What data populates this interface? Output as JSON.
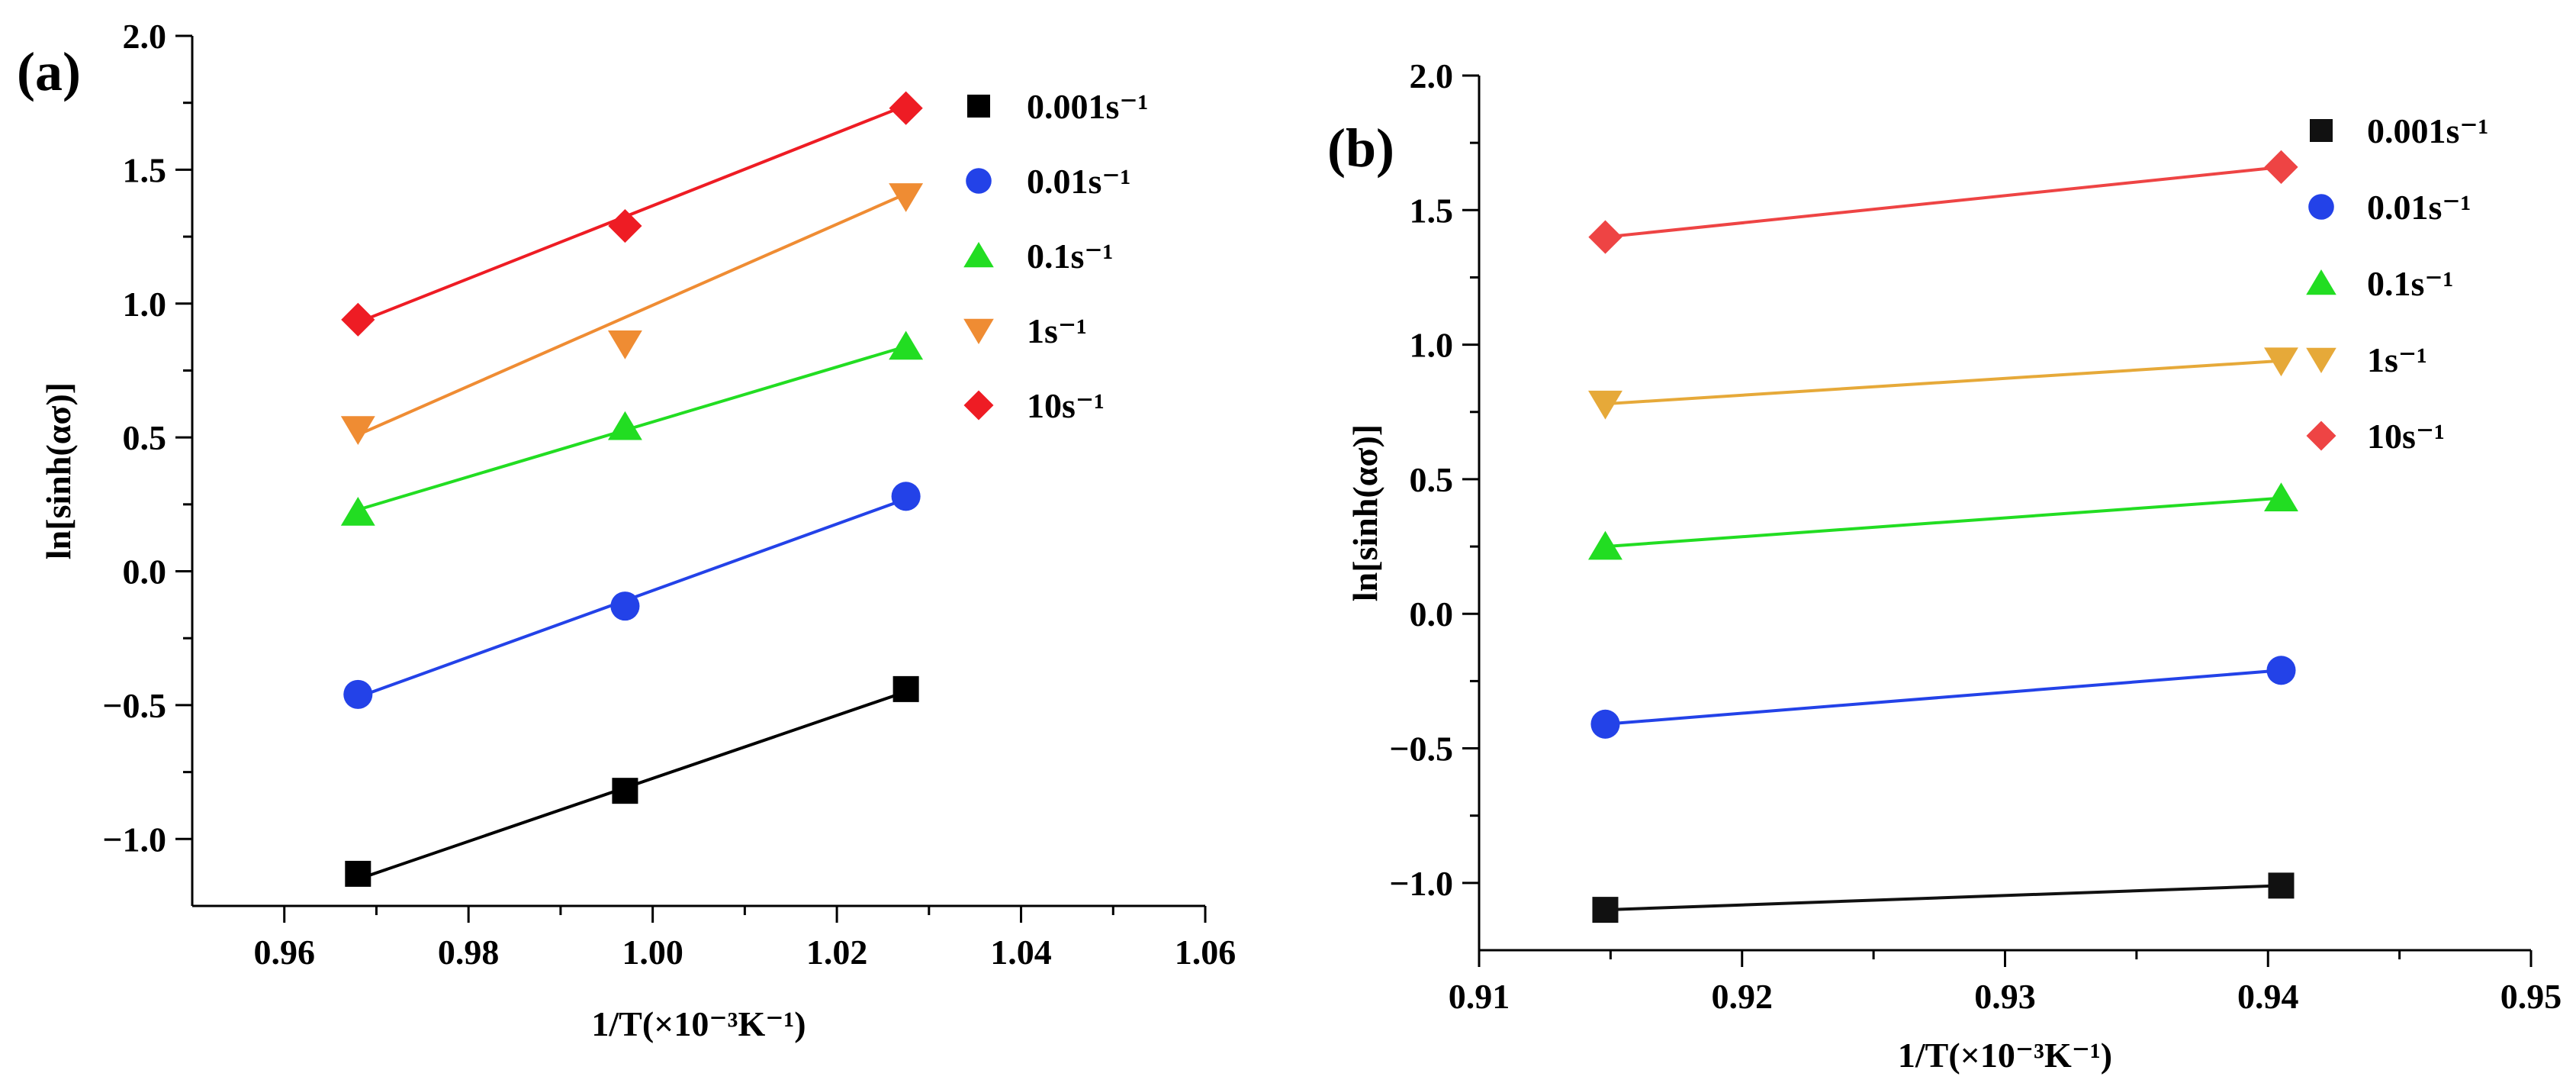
{
  "chart_data": [
    {
      "type": "scatter",
      "panel_label": "(a)",
      "xlabel": "1/T(×10⁻³K⁻¹)",
      "ylabel": "ln[sinh(ασ)]",
      "xlim": [
        0.95,
        1.06
      ],
      "ylim": [
        -1.25,
        2.0
      ],
      "xticks": [
        0.96,
        0.98,
        1.0,
        1.02,
        1.04,
        1.06
      ],
      "xtick_labels": [
        "0.96",
        "0.98",
        "1.00",
        "1.02",
        "1.04",
        "1.06"
      ],
      "yticks": [
        -1.0,
        -0.5,
        0.0,
        0.5,
        1.0,
        1.5,
        2.0
      ],
      "ytick_labels": [
        "−1.0",
        "−0.5",
        "0.0",
        "0.5",
        "1.0",
        "1.5",
        "2.0"
      ],
      "legend_position": "top-right",
      "series": [
        {
          "name": "0.001s⁻¹",
          "marker": "square",
          "color": "#000000",
          "x": [
            0.968,
            0.997,
            1.0275
          ],
          "y": [
            -1.13,
            -0.82,
            -0.44
          ],
          "fit": [
            [
              0.968,
              -1.15
            ],
            [
              1.0275,
              -0.45
            ]
          ]
        },
        {
          "name": "0.01s⁻¹",
          "marker": "circle",
          "color": "#2342e8",
          "x": [
            0.968,
            0.997,
            1.0275
          ],
          "y": [
            -0.46,
            -0.13,
            0.28
          ],
          "fit": [
            [
              0.968,
              -0.47
            ],
            [
              1.0275,
              0.27
            ]
          ]
        },
        {
          "name": "0.1s⁻¹",
          "marker": "triangle-up",
          "color": "#22dd22",
          "x": [
            0.968,
            0.997,
            1.0275
          ],
          "y": [
            0.22,
            0.54,
            0.84
          ],
          "fit": [
            [
              0.968,
              0.23
            ],
            [
              1.0275,
              0.84
            ]
          ]
        },
        {
          "name": "1s⁻¹",
          "marker": "triangle-down",
          "color": "#ef8c33",
          "x": [
            0.968,
            0.997,
            1.0275
          ],
          "y": [
            0.53,
            0.85,
            1.4
          ],
          "fit": [
            [
              0.968,
              0.51
            ],
            [
              1.0275,
              1.41
            ]
          ]
        },
        {
          "name": "10s⁻¹",
          "marker": "diamond",
          "color": "#ee1c24",
          "x": [
            0.968,
            0.997,
            1.0275
          ],
          "y": [
            0.94,
            1.29,
            1.73
          ],
          "fit": [
            [
              0.968,
              0.93
            ],
            [
              1.0275,
              1.74
            ]
          ]
        }
      ]
    },
    {
      "type": "scatter",
      "panel_label": "(b)",
      "xlabel": "1/T(×10⁻³K⁻¹)",
      "ylabel": "ln[sinh(ασ)]",
      "xlim": [
        0.91,
        0.95
      ],
      "ylim": [
        -1.25,
        2.0
      ],
      "xticks": [
        0.91,
        0.92,
        0.93,
        0.94,
        0.95
      ],
      "xtick_labels": [
        "0.91",
        "0.92",
        "0.93",
        "0.94",
        "0.95"
      ],
      "yticks": [
        -1.0,
        -0.5,
        0.0,
        0.5,
        1.0,
        1.5,
        2.0
      ],
      "ytick_labels": [
        "−1.0",
        "−0.5",
        "0.0",
        "0.5",
        "1.0",
        "1.5",
        "2.0"
      ],
      "legend_position": "top-right",
      "series": [
        {
          "name": "0.001s⁻¹",
          "marker": "square",
          "color": "#111111",
          "x": [
            0.9148,
            0.9405
          ],
          "y": [
            -1.1,
            -1.01
          ],
          "fit": [
            [
              0.9148,
              -1.1
            ],
            [
              0.9405,
              -1.01
            ]
          ]
        },
        {
          "name": "0.01s⁻¹",
          "marker": "circle",
          "color": "#2342e8",
          "x": [
            0.9148,
            0.9405
          ],
          "y": [
            -0.41,
            -0.21
          ],
          "fit": [
            [
              0.9148,
              -0.41
            ],
            [
              0.9405,
              -0.21
            ]
          ]
        },
        {
          "name": "0.1s⁻¹",
          "marker": "triangle-up",
          "color": "#22dd22",
          "x": [
            0.9148,
            0.9405
          ],
          "y": [
            0.25,
            0.43
          ],
          "fit": [
            [
              0.9148,
              0.25
            ],
            [
              0.9405,
              0.43
            ]
          ]
        },
        {
          "name": "1s⁻¹",
          "marker": "triangle-down",
          "color": "#e6a939",
          "x": [
            0.9148,
            0.9405
          ],
          "y": [
            0.78,
            0.94
          ],
          "fit": [
            [
              0.9148,
              0.78
            ],
            [
              0.9405,
              0.94
            ]
          ]
        },
        {
          "name": "10s⁻¹",
          "marker": "diamond",
          "color": "#ee4444",
          "x": [
            0.9148,
            0.9405
          ],
          "y": [
            1.4,
            1.66
          ],
          "fit": [
            [
              0.9148,
              1.4
            ],
            [
              0.9405,
              1.66
            ]
          ]
        }
      ]
    }
  ]
}
